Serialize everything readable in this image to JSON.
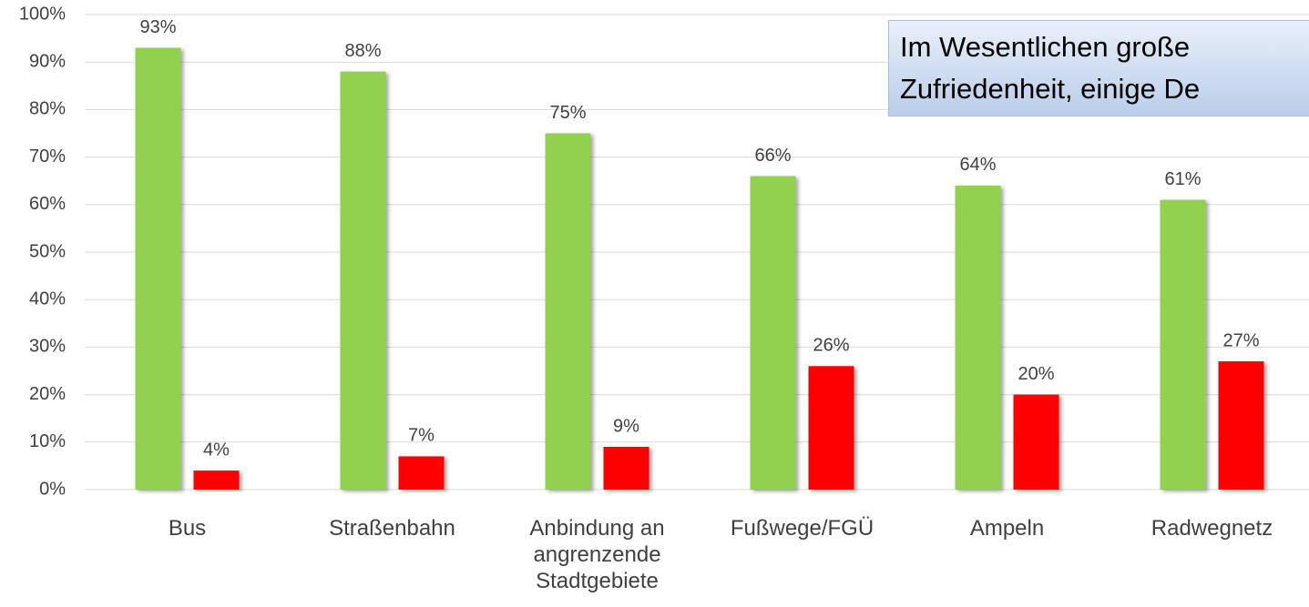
{
  "chart_data": {
    "type": "bar",
    "categories": [
      "Bus",
      "Straßenbahn",
      "Anbindung an angrenzende Stadtgebiete",
      "Fußwege/FGÜ",
      "Ampeln",
      "Radwegnetz"
    ],
    "series": [
      {
        "color": "#92d050",
        "values": [
          93,
          88,
          75,
          66,
          64,
          61
        ],
        "value_labels": [
          "93%",
          "88%",
          "75%",
          "66%",
          "64%",
          "61%"
        ]
      },
      {
        "color": "#ff0000",
        "values": [
          4,
          7,
          9,
          26,
          20,
          27
        ],
        "value_labels": [
          "4%",
          "7%",
          "9%",
          "26%",
          "20%",
          "27%"
        ]
      }
    ],
    "ylim": [
      0,
      100
    ],
    "yticks": [
      {
        "value": 0,
        "label": "0%"
      },
      {
        "value": 10,
        "label": "10%"
      },
      {
        "value": 20,
        "label": "20%"
      },
      {
        "value": 30,
        "label": "30%"
      },
      {
        "value": 40,
        "label": "40%"
      },
      {
        "value": 50,
        "label": "50%"
      },
      {
        "value": 60,
        "label": "60%"
      },
      {
        "value": 70,
        "label": "70%"
      },
      {
        "value": 80,
        "label": "80%"
      },
      {
        "value": 90,
        "label": "90%"
      },
      {
        "value": 100,
        "label": "100%"
      }
    ],
    "grid": true,
    "annotation": [
      "Im Wesentlichen große",
      "Zufriedenheit, einige De"
    ]
  }
}
